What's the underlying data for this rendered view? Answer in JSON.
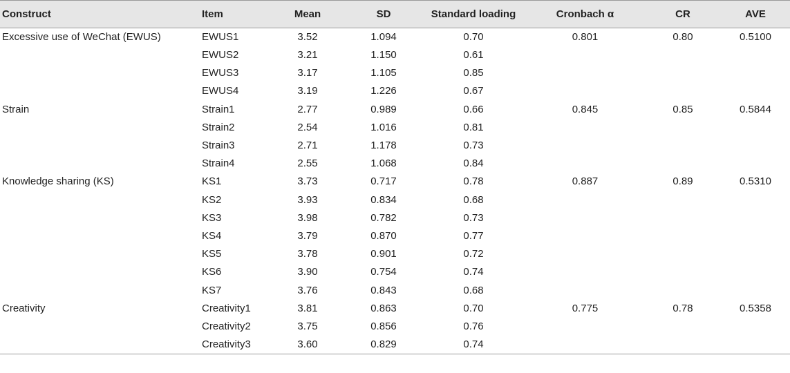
{
  "headers": {
    "construct": "Construct",
    "item": "Item",
    "mean": "Mean",
    "sd": "SD",
    "loading": "Standard loading",
    "alpha": "Cronbach α",
    "cr": "CR",
    "ave": "AVE"
  },
  "rows": [
    {
      "construct": "Excessive use of WeChat (EWUS)",
      "item": "EWUS1",
      "mean": "3.52",
      "sd": "1.094",
      "loading": "0.70",
      "alpha": "0.801",
      "cr": "0.80",
      "ave": "0.5100"
    },
    {
      "construct": "",
      "item": "EWUS2",
      "mean": "3.21",
      "sd": "1.150",
      "loading": "0.61",
      "alpha": "",
      "cr": "",
      "ave": ""
    },
    {
      "construct": "",
      "item": "EWUS3",
      "mean": "3.17",
      "sd": "1.105",
      "loading": "0.85",
      "alpha": "",
      "cr": "",
      "ave": ""
    },
    {
      "construct": "",
      "item": "EWUS4",
      "mean": "3.19",
      "sd": "1.226",
      "loading": "0.67",
      "alpha": "",
      "cr": "",
      "ave": ""
    },
    {
      "construct": "Strain",
      "item": "Strain1",
      "mean": "2.77",
      "sd": "0.989",
      "loading": "0.66",
      "alpha": "0.845",
      "cr": "0.85",
      "ave": "0.5844"
    },
    {
      "construct": "",
      "item": "Strain2",
      "mean": "2.54",
      "sd": "1.016",
      "loading": "0.81",
      "alpha": "",
      "cr": "",
      "ave": ""
    },
    {
      "construct": "",
      "item": "Strain3",
      "mean": "2.71",
      "sd": "1.178",
      "loading": "0.73",
      "alpha": "",
      "cr": "",
      "ave": ""
    },
    {
      "construct": "",
      "item": "Strain4",
      "mean": "2.55",
      "sd": "1.068",
      "loading": "0.84",
      "alpha": "",
      "cr": "",
      "ave": ""
    },
    {
      "construct": "Knowledge sharing (KS)",
      "item": "KS1",
      "mean": "3.73",
      "sd": "0.717",
      "loading": "0.78",
      "alpha": "0.887",
      "cr": "0.89",
      "ave": "0.5310"
    },
    {
      "construct": "",
      "item": "KS2",
      "mean": "3.93",
      "sd": "0.834",
      "loading": "0.68",
      "alpha": "",
      "cr": "",
      "ave": ""
    },
    {
      "construct": "",
      "item": "KS3",
      "mean": "3.98",
      "sd": "0.782",
      "loading": "0.73",
      "alpha": "",
      "cr": "",
      "ave": ""
    },
    {
      "construct": "",
      "item": "KS4",
      "mean": "3.79",
      "sd": "0.870",
      "loading": "0.77",
      "alpha": "",
      "cr": "",
      "ave": ""
    },
    {
      "construct": "",
      "item": "KS5",
      "mean": "3.78",
      "sd": "0.901",
      "loading": "0.72",
      "alpha": "",
      "cr": "",
      "ave": ""
    },
    {
      "construct": "",
      "item": "KS6",
      "mean": "3.90",
      "sd": "0.754",
      "loading": "0.74",
      "alpha": "",
      "cr": "",
      "ave": ""
    },
    {
      "construct": "",
      "item": "KS7",
      "mean": "3.76",
      "sd": "0.843",
      "loading": "0.68",
      "alpha": "",
      "cr": "",
      "ave": ""
    },
    {
      "construct": "Creativity",
      "item": "Creativity1",
      "mean": "3.81",
      "sd": "0.863",
      "loading": "0.70",
      "alpha": "0.775",
      "cr": "0.78",
      "ave": "0.5358"
    },
    {
      "construct": "",
      "item": "Creativity2",
      "mean": "3.75",
      "sd": "0.856",
      "loading": "0.76",
      "alpha": "",
      "cr": "",
      "ave": ""
    },
    {
      "construct": "",
      "item": "Creativity3",
      "mean": "3.60",
      "sd": "0.829",
      "loading": "0.74",
      "alpha": "",
      "cr": "",
      "ave": ""
    }
  ]
}
